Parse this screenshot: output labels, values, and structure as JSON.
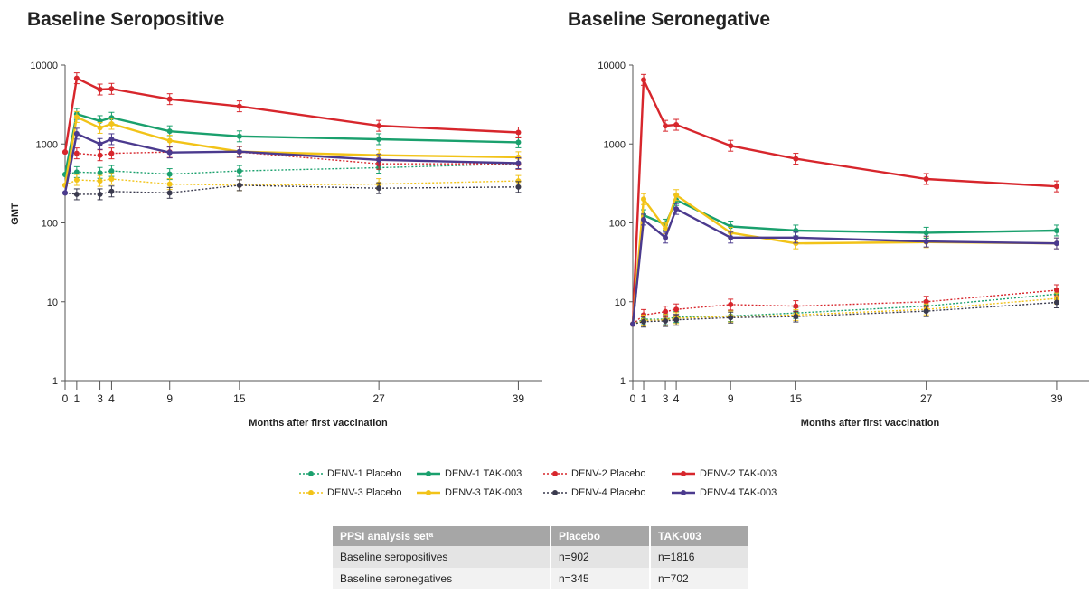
{
  "chart_data": [
    {
      "type": "line",
      "title": "Baseline Seropositive",
      "xlabel": "Months after first vaccination",
      "ylabel": "GMT",
      "yscale": "log",
      "ylim": [
        1,
        10000
      ],
      "yticks": [
        "1",
        "10",
        "100",
        "1000",
        "10000"
      ],
      "xticks": [
        0,
        1,
        3,
        4,
        9,
        15,
        27,
        39
      ],
      "xlim": [
        0,
        42
      ],
      "grid": false,
      "series": [
        {
          "name": "DENV-1 Placebo",
          "color": "#1aa06d",
          "style": "dotted",
          "x": [
            0,
            1,
            3,
            4,
            9,
            15,
            27,
            39
          ],
          "values": [
            410,
            440,
            430,
            455,
            415,
            455,
            500,
            560
          ]
        },
        {
          "name": "DENV-1 TAK-003",
          "color": "#1aa06d",
          "style": "solid",
          "x": [
            0,
            1,
            3,
            4,
            9,
            15,
            27,
            39
          ],
          "values": [
            410,
            2400,
            1950,
            2150,
            1450,
            1250,
            1150,
            1050
          ]
        },
        {
          "name": "DENV-2 Placebo",
          "color": "#d7262c",
          "style": "dotted",
          "x": [
            0,
            1,
            3,
            4,
            9,
            15,
            27,
            39
          ],
          "values": [
            790,
            760,
            720,
            760,
            790,
            790,
            560,
            560
          ]
        },
        {
          "name": "DENV-2 TAK-003",
          "color": "#d7262c",
          "style": "solid",
          "x": [
            0,
            1,
            3,
            4,
            9,
            15,
            27,
            39
          ],
          "values": [
            790,
            6800,
            4900,
            5000,
            3700,
            3000,
            1700,
            1400
          ]
        },
        {
          "name": "DENV-3 Placebo",
          "color": "#f2c318",
          "style": "dotted",
          "x": [
            0,
            1,
            3,
            4,
            9,
            15,
            27,
            39
          ],
          "values": [
            300,
            350,
            340,
            360,
            310,
            300,
            310,
            340
          ]
        },
        {
          "name": "DENV-3 TAK-003",
          "color": "#f2c318",
          "style": "solid",
          "x": [
            0,
            1,
            3,
            4,
            9,
            15,
            27,
            39
          ],
          "values": [
            300,
            2200,
            1600,
            1800,
            1100,
            800,
            720,
            680
          ]
        },
        {
          "name": "DENV-4 Placebo",
          "color": "#3a3a4e",
          "style": "dotted",
          "x": [
            0,
            1,
            3,
            4,
            9,
            15,
            27,
            39
          ],
          "values": [
            240,
            230,
            230,
            250,
            240,
            300,
            275,
            285
          ]
        },
        {
          "name": "DENV-4 TAK-003",
          "color": "#4b3a8e",
          "style": "solid",
          "x": [
            0,
            1,
            3,
            4,
            9,
            15,
            27,
            39
          ],
          "values": [
            240,
            1350,
            1000,
            1150,
            780,
            800,
            630,
            570
          ]
        }
      ]
    },
    {
      "type": "line",
      "title": "Baseline Seronegative",
      "xlabel": "Months after first vaccination",
      "ylabel": "",
      "yscale": "log",
      "ylim": [
        1,
        10000
      ],
      "yticks": [
        "1",
        "10",
        "100",
        "1000",
        "10000"
      ],
      "xticks": [
        0,
        1,
        3,
        4,
        9,
        15,
        27,
        39
      ],
      "xlim": [
        0,
        42
      ],
      "grid": false,
      "series": [
        {
          "name": "DENV-1 Placebo",
          "color": "#1aa06d",
          "style": "dotted",
          "x": [
            0,
            1,
            3,
            4,
            9,
            15,
            27,
            39
          ],
          "values": [
            5.2,
            6.0,
            6.0,
            6.4,
            6.6,
            7.2,
            8.8,
            12.5
          ]
        },
        {
          "name": "DENV-1 TAK-003",
          "color": "#1aa06d",
          "style": "solid",
          "x": [
            0,
            1,
            3,
            4,
            9,
            15,
            27,
            39
          ],
          "values": [
            5.2,
            125,
            95,
            195,
            90,
            80,
            75,
            80
          ]
        },
        {
          "name": "DENV-2 Placebo",
          "color": "#d7262c",
          "style": "dotted",
          "x": [
            0,
            1,
            3,
            4,
            9,
            15,
            27,
            39
          ],
          "values": [
            5.2,
            6.8,
            7.5,
            8.0,
            9.2,
            8.8,
            10,
            14
          ]
        },
        {
          "name": "DENV-2 TAK-003",
          "color": "#d7262c",
          "style": "solid",
          "x": [
            0,
            1,
            3,
            4,
            9,
            15,
            27,
            39
          ],
          "values": [
            5.2,
            6500,
            1700,
            1750,
            950,
            650,
            360,
            290
          ]
        },
        {
          "name": "DENV-3 Placebo",
          "color": "#f2c318",
          "style": "dotted",
          "x": [
            0,
            1,
            3,
            4,
            9,
            15,
            27,
            39
          ],
          "values": [
            5.2,
            5.8,
            5.9,
            6.2,
            6.5,
            6.8,
            8.0,
            11
          ]
        },
        {
          "name": "DENV-3 TAK-003",
          "color": "#f2c318",
          "style": "solid",
          "x": [
            0,
            1,
            3,
            4,
            9,
            15,
            27,
            39
          ],
          "values": [
            5.2,
            200,
            85,
            225,
            75,
            55,
            57,
            55
          ]
        },
        {
          "name": "DENV-4 Placebo",
          "color": "#3a3a4e",
          "style": "dotted",
          "x": [
            0,
            1,
            3,
            4,
            9,
            15,
            27,
            39
          ],
          "values": [
            5.2,
            5.6,
            5.7,
            5.9,
            6.3,
            6.5,
            7.6,
            9.8
          ]
        },
        {
          "name": "DENV-4 TAK-003",
          "color": "#4b3a8e",
          "style": "solid",
          "x": [
            0,
            1,
            3,
            4,
            9,
            15,
            27,
            39
          ],
          "values": [
            5.2,
            110,
            65,
            150,
            65,
            65,
            58,
            55
          ]
        }
      ]
    }
  ],
  "legend": [
    {
      "label": "DENV-1 Placebo",
      "color": "#1aa06d",
      "style": "dotted"
    },
    {
      "label": "DENV-1 TAK-003",
      "color": "#1aa06d",
      "style": "solid"
    },
    {
      "label": "DENV-2 Placebo",
      "color": "#d7262c",
      "style": "dotted"
    },
    {
      "label": "DENV-2 TAK-003",
      "color": "#d7262c",
      "style": "solid"
    },
    {
      "label": "DENV-3 Placebo",
      "color": "#f2c318",
      "style": "dotted"
    },
    {
      "label": "DENV-3 TAK-003",
      "color": "#f2c318",
      "style": "solid"
    },
    {
      "label": "DENV-4 Placebo",
      "color": "#3a3a4e",
      "style": "dotted"
    },
    {
      "label": "DENV-4 TAK-003",
      "color": "#4b3a8e",
      "style": "solid"
    }
  ],
  "table": {
    "headers": [
      "PPSI analysis setᵃ",
      "Placebo",
      "TAK-003"
    ],
    "rows": [
      [
        "Baseline seropositives",
        "n=902",
        "n=1816"
      ],
      [
        "Baseline seronegatives",
        "n=345",
        "n=702"
      ]
    ]
  }
}
